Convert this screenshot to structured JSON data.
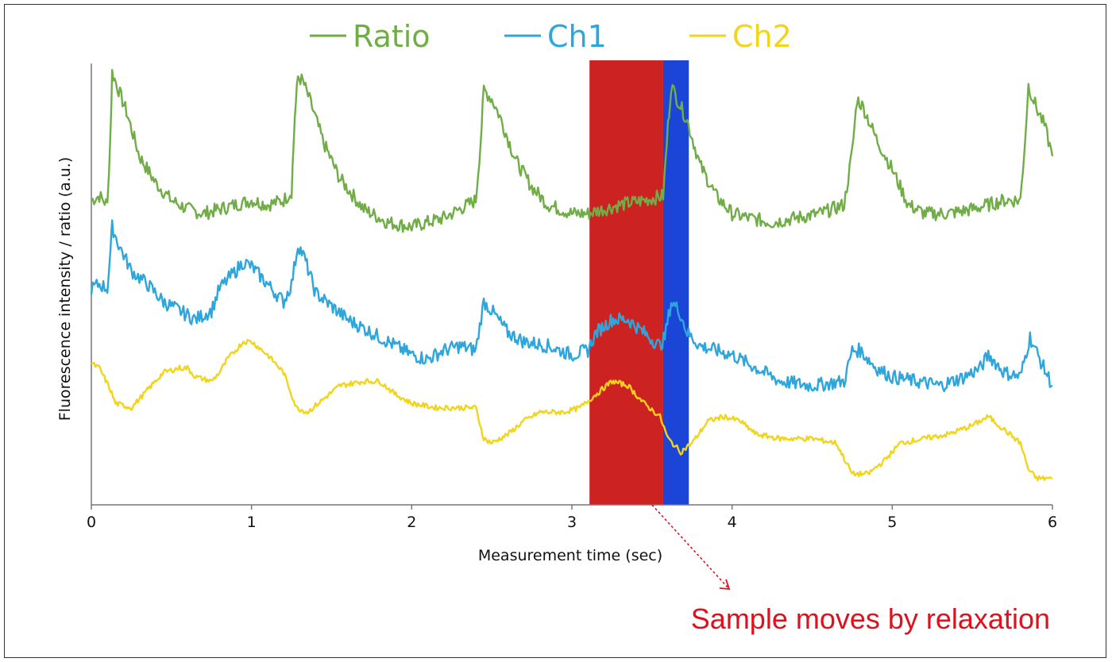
{
  "chart_data": {
    "type": "line",
    "xlabel": "Measurement time (sec)",
    "ylabel": "Fluorescence intensity / ratio (a.u.)",
    "xlim": [
      0,
      6
    ],
    "x_ticks": [
      "0",
      "1",
      "2",
      "3",
      "4",
      "5",
      "6"
    ],
    "ylim": [
      0,
      1
    ],
    "legend_position": "top",
    "grid": false,
    "series": [
      {
        "name": "Ratio",
        "color": "#70ad47",
        "points": [
          [
            0.0,
            0.69
          ],
          [
            0.05,
            0.7
          ],
          [
            0.1,
            0.68
          ],
          [
            0.12,
            0.85
          ],
          [
            0.13,
            0.98
          ],
          [
            0.17,
            0.94
          ],
          [
            0.22,
            0.89
          ],
          [
            0.3,
            0.79
          ],
          [
            0.4,
            0.73
          ],
          [
            0.5,
            0.69
          ],
          [
            0.6,
            0.67
          ],
          [
            0.7,
            0.66
          ],
          [
            0.8,
            0.67
          ],
          [
            0.9,
            0.68
          ],
          [
            1.0,
            0.69
          ],
          [
            1.1,
            0.68
          ],
          [
            1.2,
            0.69
          ],
          [
            1.25,
            0.71
          ],
          [
            1.27,
            0.88
          ],
          [
            1.29,
            0.97
          ],
          [
            1.32,
            0.96
          ],
          [
            1.37,
            0.91
          ],
          [
            1.45,
            0.82
          ],
          [
            1.55,
            0.74
          ],
          [
            1.7,
            0.67
          ],
          [
            1.85,
            0.64
          ],
          [
            2.0,
            0.63
          ],
          [
            2.1,
            0.64
          ],
          [
            2.2,
            0.65
          ],
          [
            2.3,
            0.67
          ],
          [
            2.4,
            0.69
          ],
          [
            2.43,
            0.82
          ],
          [
            2.45,
            0.94
          ],
          [
            2.5,
            0.92
          ],
          [
            2.55,
            0.88
          ],
          [
            2.65,
            0.78
          ],
          [
            2.75,
            0.72
          ],
          [
            2.85,
            0.68
          ],
          [
            3.0,
            0.66
          ],
          [
            3.1,
            0.66
          ],
          [
            3.2,
            0.67
          ],
          [
            3.3,
            0.68
          ],
          [
            3.45,
            0.69
          ],
          [
            3.57,
            0.7
          ],
          [
            3.6,
            0.86
          ],
          [
            3.62,
            0.95
          ],
          [
            3.67,
            0.91
          ],
          [
            3.72,
            0.87
          ],
          [
            3.8,
            0.77
          ],
          [
            3.9,
            0.7
          ],
          [
            4.0,
            0.66
          ],
          [
            4.1,
            0.65
          ],
          [
            4.25,
            0.64
          ],
          [
            4.4,
            0.65
          ],
          [
            4.55,
            0.66
          ],
          [
            4.7,
            0.68
          ],
          [
            4.75,
            0.8
          ],
          [
            4.78,
            0.92
          ],
          [
            4.82,
            0.9
          ],
          [
            4.9,
            0.83
          ],
          [
            5.0,
            0.76
          ],
          [
            5.1,
            0.68
          ],
          [
            5.2,
            0.66
          ],
          [
            5.35,
            0.66
          ],
          [
            5.5,
            0.67
          ],
          [
            5.7,
            0.69
          ],
          [
            5.8,
            0.69
          ],
          [
            5.83,
            0.83
          ],
          [
            5.85,
            0.95
          ],
          [
            5.9,
            0.9
          ],
          [
            5.95,
            0.86
          ],
          [
            6.0,
            0.79
          ]
        ]
      },
      {
        "name": "Ch1",
        "color": "#2ea6dc",
        "points": [
          [
            0.0,
            0.49
          ],
          [
            0.05,
            0.5
          ],
          [
            0.1,
            0.49
          ],
          [
            0.12,
            0.58
          ],
          [
            0.13,
            0.63
          ],
          [
            0.17,
            0.59
          ],
          [
            0.25,
            0.53
          ],
          [
            0.35,
            0.5
          ],
          [
            0.45,
            0.46
          ],
          [
            0.55,
            0.44
          ],
          [
            0.65,
            0.42
          ],
          [
            0.75,
            0.44
          ],
          [
            0.8,
            0.49
          ],
          [
            0.9,
            0.53
          ],
          [
            0.95,
            0.55
          ],
          [
            1.0,
            0.54
          ],
          [
            1.1,
            0.5
          ],
          [
            1.2,
            0.46
          ],
          [
            1.25,
            0.5
          ],
          [
            1.29,
            0.59
          ],
          [
            1.33,
            0.56
          ],
          [
            1.4,
            0.48
          ],
          [
            1.5,
            0.45
          ],
          [
            1.6,
            0.42
          ],
          [
            1.75,
            0.39
          ],
          [
            1.9,
            0.36
          ],
          [
            2.0,
            0.34
          ],
          [
            2.1,
            0.33
          ],
          [
            2.2,
            0.35
          ],
          [
            2.3,
            0.36
          ],
          [
            2.4,
            0.35
          ],
          [
            2.45,
            0.46
          ],
          [
            2.5,
            0.44
          ],
          [
            2.6,
            0.39
          ],
          [
            2.7,
            0.37
          ],
          [
            2.85,
            0.36
          ],
          [
            3.0,
            0.34
          ],
          [
            3.1,
            0.35
          ],
          [
            3.15,
            0.39
          ],
          [
            3.25,
            0.42
          ],
          [
            3.35,
            0.42
          ],
          [
            3.45,
            0.39
          ],
          [
            3.55,
            0.36
          ],
          [
            3.58,
            0.38
          ],
          [
            3.62,
            0.46
          ],
          [
            3.67,
            0.44
          ],
          [
            3.72,
            0.39
          ],
          [
            3.8,
            0.36
          ],
          [
            3.9,
            0.35
          ],
          [
            4.0,
            0.34
          ],
          [
            4.1,
            0.32
          ],
          [
            4.2,
            0.3
          ],
          [
            4.3,
            0.28
          ],
          [
            4.5,
            0.27
          ],
          [
            4.7,
            0.28
          ],
          [
            4.75,
            0.35
          ],
          [
            4.8,
            0.35
          ],
          [
            4.9,
            0.31
          ],
          [
            5.0,
            0.29
          ],
          [
            5.15,
            0.28
          ],
          [
            5.3,
            0.27
          ],
          [
            5.45,
            0.29
          ],
          [
            5.55,
            0.31
          ],
          [
            5.6,
            0.34
          ],
          [
            5.7,
            0.3
          ],
          [
            5.8,
            0.29
          ],
          [
            5.86,
            0.38
          ],
          [
            5.92,
            0.33
          ],
          [
            6.0,
            0.27
          ]
        ]
      },
      {
        "name": "Ch2",
        "color": "#f2d41a",
        "points": [
          [
            0.0,
            0.32
          ],
          [
            0.05,
            0.31
          ],
          [
            0.12,
            0.26
          ],
          [
            0.15,
            0.23
          ],
          [
            0.25,
            0.22
          ],
          [
            0.35,
            0.26
          ],
          [
            0.45,
            0.3
          ],
          [
            0.55,
            0.31
          ],
          [
            0.6,
            0.31
          ],
          [
            0.65,
            0.29
          ],
          [
            0.75,
            0.28
          ],
          [
            0.8,
            0.3
          ],
          [
            0.85,
            0.33
          ],
          [
            0.95,
            0.37
          ],
          [
            1.0,
            0.37
          ],
          [
            1.1,
            0.34
          ],
          [
            1.2,
            0.3
          ],
          [
            1.28,
            0.22
          ],
          [
            1.35,
            0.21
          ],
          [
            1.45,
            0.24
          ],
          [
            1.55,
            0.27
          ],
          [
            1.7,
            0.28
          ],
          [
            1.8,
            0.28
          ],
          [
            1.9,
            0.25
          ],
          [
            2.0,
            0.23
          ],
          [
            2.15,
            0.22
          ],
          [
            2.3,
            0.22
          ],
          [
            2.4,
            0.22
          ],
          [
            2.45,
            0.15
          ],
          [
            2.5,
            0.14
          ],
          [
            2.6,
            0.16
          ],
          [
            2.7,
            0.19
          ],
          [
            2.8,
            0.21
          ],
          [
            2.95,
            0.21
          ],
          [
            3.05,
            0.22
          ],
          [
            3.15,
            0.25
          ],
          [
            3.25,
            0.28
          ],
          [
            3.35,
            0.27
          ],
          [
            3.45,
            0.23
          ],
          [
            3.55,
            0.2
          ],
          [
            3.6,
            0.15
          ],
          [
            3.68,
            0.12
          ],
          [
            3.75,
            0.14
          ],
          [
            3.85,
            0.19
          ],
          [
            3.95,
            0.2
          ],
          [
            4.05,
            0.19
          ],
          [
            4.15,
            0.16
          ],
          [
            4.3,
            0.15
          ],
          [
            4.5,
            0.15
          ],
          [
            4.65,
            0.14
          ],
          [
            4.75,
            0.07
          ],
          [
            4.85,
            0.07
          ],
          [
            4.95,
            0.1
          ],
          [
            5.05,
            0.14
          ],
          [
            5.2,
            0.15
          ],
          [
            5.35,
            0.16
          ],
          [
            5.5,
            0.18
          ],
          [
            5.6,
            0.2
          ],
          [
            5.7,
            0.17
          ],
          [
            5.8,
            0.14
          ],
          [
            5.85,
            0.08
          ],
          [
            5.9,
            0.06
          ],
          [
            6.0,
            0.06
          ]
        ]
      }
    ],
    "highlight_bands": [
      {
        "x_start": 3.11,
        "x_end": 3.57,
        "color": "#cc2222"
      },
      {
        "x_start": 3.57,
        "x_end": 3.73,
        "color": "#1a45d6"
      }
    ],
    "annotation": {
      "text": "Sample moves by relaxation",
      "color": "#e0101c",
      "arrow_from_x": 3.5
    }
  }
}
